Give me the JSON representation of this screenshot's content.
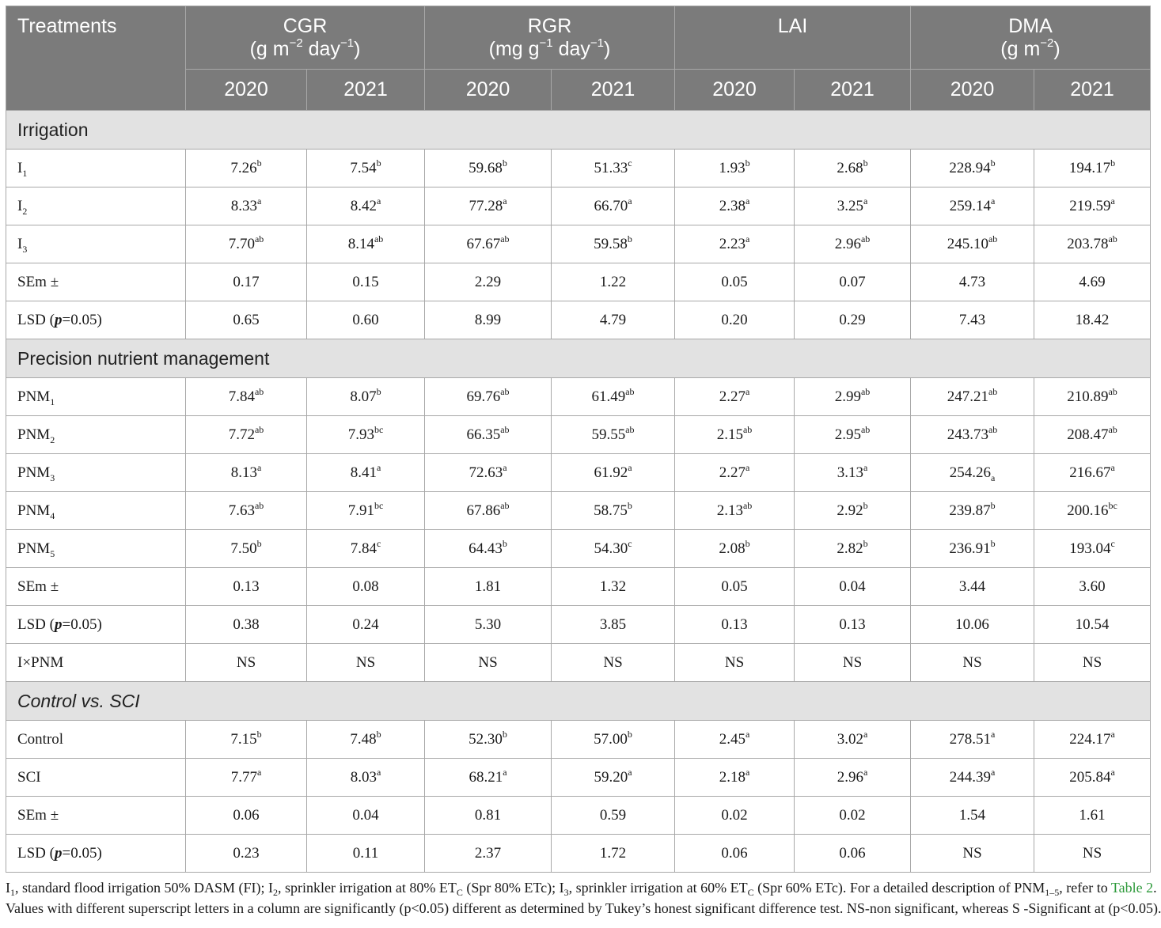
{
  "header": {
    "treatments": "Treatments",
    "groups": [
      {
        "name": "CGR",
        "unit_a": "(g m",
        "unit_sup1": "−2",
        "unit_b": " day",
        "unit_sup2": "−1",
        "unit_c": ")"
      },
      {
        "name": "RGR",
        "unit_a": "(mg g",
        "unit_sup1": "−1",
        "unit_b": " day",
        "unit_sup2": "−1",
        "unit_c": ")"
      },
      {
        "name": "LAI",
        "unit_a": "",
        "unit_sup1": "",
        "unit_b": "",
        "unit_sup2": "",
        "unit_c": ""
      },
      {
        "name": "DMA",
        "unit_a": "(g m",
        "unit_sup1": "−2",
        "unit_b": ")",
        "unit_sup2": "",
        "unit_c": ""
      }
    ],
    "years": [
      "2020",
      "2021",
      "2020",
      "2021",
      "2020",
      "2021",
      "2020",
      "2021"
    ]
  },
  "sections": [
    {
      "title": "Irrigation",
      "italic": false,
      "rows": [
        {
          "label": "I",
          "sub": "1",
          "cells": [
            [
              "7.26",
              "b"
            ],
            [
              "7.54",
              "b"
            ],
            [
              "59.68",
              "b"
            ],
            [
              "51.33",
              "c"
            ],
            [
              "1.93",
              "b"
            ],
            [
              "2.68",
              "b"
            ],
            [
              "228.94",
              "b"
            ],
            [
              "194.17",
              "b"
            ]
          ]
        },
        {
          "label": "I",
          "sub": "2",
          "cells": [
            [
              "8.33",
              "a"
            ],
            [
              "8.42",
              "a"
            ],
            [
              "77.28",
              "a"
            ],
            [
              "66.70",
              "a"
            ],
            [
              "2.38",
              "a"
            ],
            [
              "3.25",
              "a"
            ],
            [
              "259.14",
              "a"
            ],
            [
              "219.59",
              "a"
            ]
          ]
        },
        {
          "label": "I",
          "sub": "3",
          "cells": [
            [
              "7.70",
              "ab"
            ],
            [
              "8.14",
              "ab"
            ],
            [
              "67.67",
              "ab"
            ],
            [
              "59.58",
              "b"
            ],
            [
              "2.23",
              "a"
            ],
            [
              "2.96",
              "ab"
            ],
            [
              "245.10",
              "ab"
            ],
            [
              "203.78",
              "ab"
            ]
          ]
        },
        {
          "label": "SEm ±",
          "sub": "",
          "cells": [
            [
              "0.17",
              ""
            ],
            [
              "0.15",
              ""
            ],
            [
              "2.29",
              ""
            ],
            [
              "1.22",
              ""
            ],
            [
              "0.05",
              ""
            ],
            [
              "0.07",
              ""
            ],
            [
              "4.73",
              ""
            ],
            [
              "4.69",
              ""
            ]
          ]
        },
        {
          "label": "LSD (",
          "bold": "p",
          "after": "=0.05)",
          "sub": "",
          "cells": [
            [
              "0.65",
              ""
            ],
            [
              "0.60",
              ""
            ],
            [
              "8.99",
              ""
            ],
            [
              "4.79",
              ""
            ],
            [
              "0.20",
              ""
            ],
            [
              "0.29",
              ""
            ],
            [
              "7.43",
              ""
            ],
            [
              "18.42",
              ""
            ]
          ]
        }
      ]
    },
    {
      "title": "Precision nutrient management",
      "italic": false,
      "rows": [
        {
          "label": "PNM",
          "sub": "1",
          "cells": [
            [
              "7.84",
              "ab"
            ],
            [
              "8.07",
              "b"
            ],
            [
              "69.76",
              "ab"
            ],
            [
              "61.49",
              "ab"
            ],
            [
              "2.27",
              "a"
            ],
            [
              "2.99",
              "ab"
            ],
            [
              "247.21",
              "ab"
            ],
            [
              "210.89",
              "ab"
            ]
          ]
        },
        {
          "label": "PNM",
          "sub": "2",
          "cells": [
            [
              "7.72",
              "ab"
            ],
            [
              "7.93",
              "bc"
            ],
            [
              "66.35",
              "ab"
            ],
            [
              "59.55",
              "ab"
            ],
            [
              "2.15",
              "ab"
            ],
            [
              "2.95",
              "ab"
            ],
            [
              "243.73",
              "ab"
            ],
            [
              "208.47",
              "ab"
            ]
          ]
        },
        {
          "label": "PNM",
          "sub": "3",
          "cells": [
            [
              "8.13",
              "a"
            ],
            [
              "8.41",
              "a"
            ],
            [
              "72.63",
              "a"
            ],
            [
              "61.92",
              "a"
            ],
            [
              "2.27",
              "a"
            ],
            [
              "3.13",
              "a"
            ],
            [
              "254.26",
              "a_sub"
            ],
            [
              "216.67",
              "a"
            ]
          ]
        },
        {
          "label": "PNM",
          "sub": "4",
          "cells": [
            [
              "7.63",
              "ab"
            ],
            [
              "7.91",
              "bc"
            ],
            [
              "67.86",
              "ab"
            ],
            [
              "58.75",
              "b"
            ],
            [
              "2.13",
              "ab"
            ],
            [
              "2.92",
              "b"
            ],
            [
              "239.87",
              "b"
            ],
            [
              "200.16",
              "bc"
            ]
          ]
        },
        {
          "label": "PNM",
          "sub": "5",
          "cells": [
            [
              "7.50",
              "b"
            ],
            [
              "7.84",
              "c"
            ],
            [
              "64.43",
              "b"
            ],
            [
              "54.30",
              "c"
            ],
            [
              "2.08",
              "b"
            ],
            [
              "2.82",
              "b"
            ],
            [
              "236.91",
              "b"
            ],
            [
              "193.04",
              "c"
            ]
          ]
        },
        {
          "label": "SEm ±",
          "sub": "",
          "cells": [
            [
              "0.13",
              ""
            ],
            [
              "0.08",
              ""
            ],
            [
              "1.81",
              ""
            ],
            [
              "1.32",
              ""
            ],
            [
              "0.05",
              ""
            ],
            [
              "0.04",
              ""
            ],
            [
              "3.44",
              ""
            ],
            [
              "3.60",
              ""
            ]
          ]
        },
        {
          "label": "LSD  (",
          "bold": "p",
          "after": "=0.05)",
          "sub": "",
          "cells": [
            [
              "0.38",
              ""
            ],
            [
              "0.24",
              ""
            ],
            [
              "5.30",
              ""
            ],
            [
              "3.85",
              ""
            ],
            [
              "0.13",
              ""
            ],
            [
              "0.13",
              ""
            ],
            [
              "10.06",
              ""
            ],
            [
              "10.54",
              ""
            ]
          ]
        },
        {
          "label": "I×PNM",
          "sub": "",
          "cells": [
            [
              "NS",
              ""
            ],
            [
              "NS",
              ""
            ],
            [
              "NS",
              ""
            ],
            [
              "NS",
              ""
            ],
            [
              "NS",
              ""
            ],
            [
              "NS",
              ""
            ],
            [
              "NS",
              ""
            ],
            [
              "NS",
              ""
            ]
          ]
        }
      ]
    },
    {
      "title": "Control vs. SCI",
      "italic": true,
      "rows": [
        {
          "label": "Control",
          "sub": "",
          "cells": [
            [
              "7.15",
              "b"
            ],
            [
              "7.48",
              "b"
            ],
            [
              "52.30",
              "b"
            ],
            [
              "57.00",
              "b"
            ],
            [
              "2.45",
              "a"
            ],
            [
              "3.02",
              "a"
            ],
            [
              "278.51",
              "a"
            ],
            [
              "224.17",
              "a"
            ]
          ]
        },
        {
          "label": "SCI",
          "sub": "",
          "cells": [
            [
              "7.77",
              "a"
            ],
            [
              "8.03",
              "a"
            ],
            [
              "68.21",
              "a"
            ],
            [
              "59.20",
              "a"
            ],
            [
              "2.18",
              "a"
            ],
            [
              "2.96",
              "a"
            ],
            [
              "244.39",
              "a"
            ],
            [
              "205.84",
              "a"
            ]
          ]
        },
        {
          "label": "SEm ±",
          "sub": "",
          "cells": [
            [
              "0.06",
              ""
            ],
            [
              "0.04",
              ""
            ],
            [
              "0.81",
              ""
            ],
            [
              "0.59",
              ""
            ],
            [
              "0.02",
              ""
            ],
            [
              "0.02",
              ""
            ],
            [
              "1.54",
              ""
            ],
            [
              "1.61",
              ""
            ]
          ]
        },
        {
          "label": "LSD (",
          "bold": "p",
          "after": "=0.05)",
          "sub": "",
          "cells": [
            [
              "0.23",
              ""
            ],
            [
              "0.11",
              ""
            ],
            [
              "2.37",
              ""
            ],
            [
              "1.72",
              ""
            ],
            [
              "0.06",
              ""
            ],
            [
              "0.06",
              ""
            ],
            [
              "NS",
              ""
            ],
            [
              "NS",
              ""
            ]
          ]
        }
      ]
    }
  ],
  "footnote": {
    "line1": [
      {
        "t": "I"
      },
      {
        "s": "1"
      },
      {
        "t": ", standard flood irrigation 50% DASM (FI); I"
      },
      {
        "s": "2"
      },
      {
        "t": ", sprinkler irrigation at 80% ET"
      },
      {
        "s": "C"
      },
      {
        "t": " (Spr 80% ETc); I"
      },
      {
        "s": "3"
      },
      {
        "t": ", sprinkler irrigation at 60% ET"
      },
      {
        "s": "C"
      },
      {
        "t": " (Spr 60% ETc). For a detailed description of PNM"
      },
      {
        "s": "1–5"
      },
      {
        "t": ", refer to "
      },
      {
        "link": "Table 2"
      },
      {
        "t": "."
      }
    ],
    "line2": "Values with different superscript letters in a column are significantly (p<0.05) different as determined by Tukey’s honest significant difference test. NS-non significant, whereas S -Significant at (p<0.05).",
    "link_color": "#2e9a3b"
  }
}
